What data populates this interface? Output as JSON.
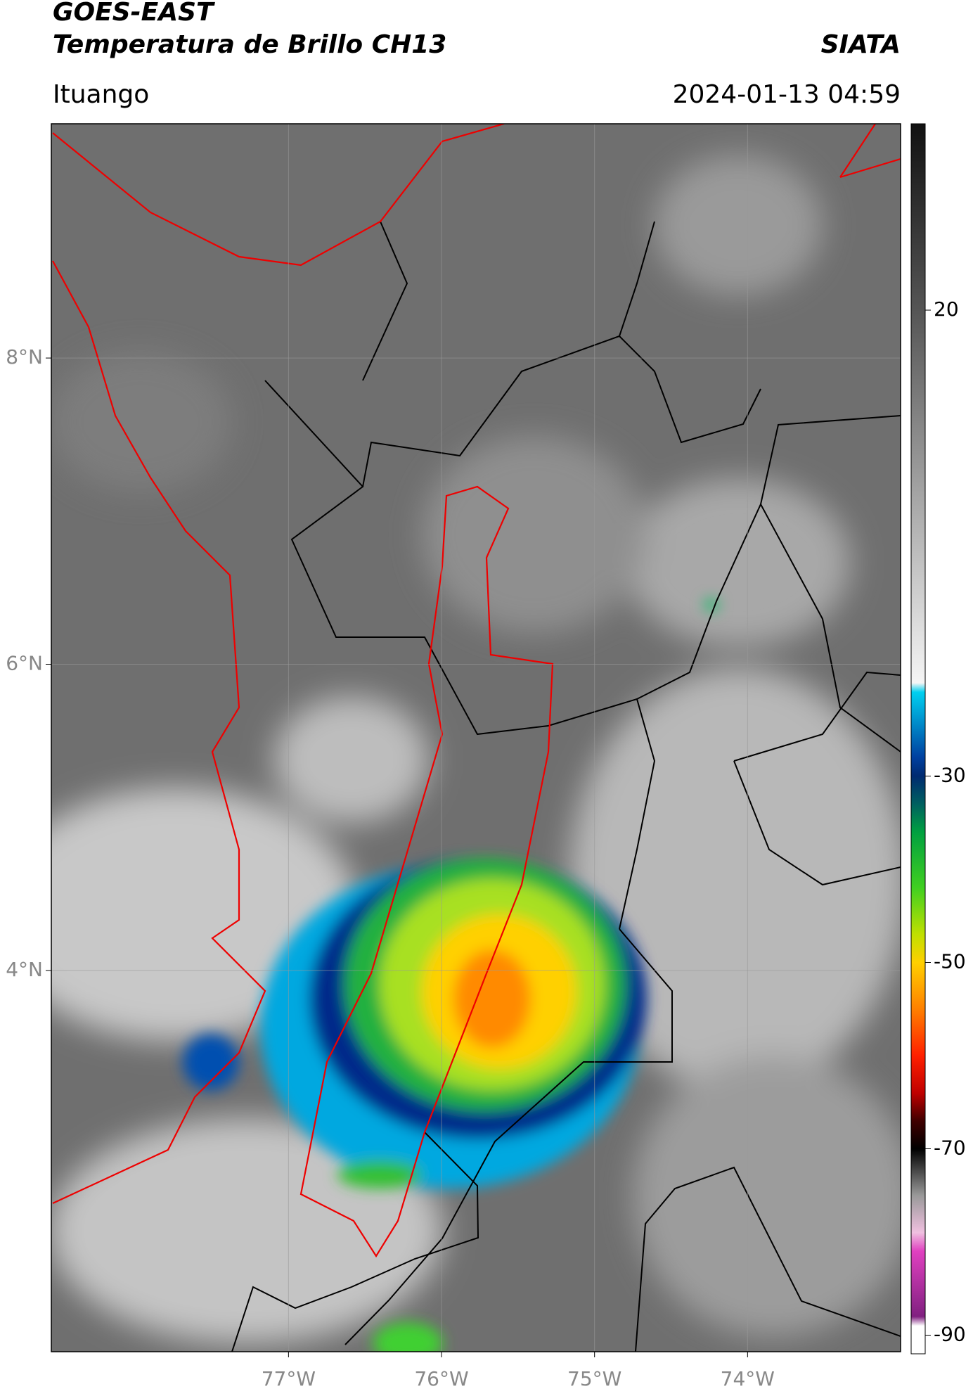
{
  "header": {
    "title_line1": "GOES-EAST",
    "title_line2": "Temperatura de Brillo CH13",
    "credit": "SIATA",
    "location": "Ituango",
    "datetime": "2024-01-13 04:59"
  },
  "map": {
    "xlim": [
      -78.55,
      -73.0
    ],
    "ylim": [
      1.51,
      9.53
    ],
    "grid": true,
    "xticks": [
      {
        "value": -77,
        "label": "77°W"
      },
      {
        "value": -76,
        "label": "76°W"
      },
      {
        "value": -75,
        "label": "75°W"
      },
      {
        "value": -74,
        "label": "74°W"
      }
    ],
    "yticks": [
      {
        "value": 8,
        "label": "8°N"
      },
      {
        "value": 6,
        "label": "6°N"
      },
      {
        "value": 4,
        "label": "4°N"
      }
    ]
  },
  "colorbar": {
    "lim": [
      -92,
      40
    ],
    "ticks": [
      20,
      -30,
      -50,
      -70,
      -90
    ],
    "stops": [
      [
        40,
        "#111111"
      ],
      [
        20,
        "#555555"
      ],
      [
        -20,
        "#f5f5f5"
      ],
      [
        -21,
        "#00d0f0"
      ],
      [
        -28,
        "#0040a0"
      ],
      [
        -30,
        "#002a70"
      ],
      [
        -33,
        "#006060"
      ],
      [
        -36,
        "#00a040"
      ],
      [
        -42,
        "#40d020"
      ],
      [
        -47,
        "#c0e000"
      ],
      [
        -50,
        "#ffd000"
      ],
      [
        -55,
        "#ff8000"
      ],
      [
        -60,
        "#ff2000"
      ],
      [
        -64,
        "#c00000"
      ],
      [
        -67,
        "#400000"
      ],
      [
        -70,
        "#000000"
      ],
      [
        -75,
        "#999999"
      ],
      [
        -79,
        "#f0c0e0"
      ],
      [
        -81,
        "#e040c0"
      ],
      [
        -88,
        "#802080"
      ],
      [
        -89,
        "#ffffff"
      ],
      [
        -92,
        "#ffffff"
      ]
    ]
  }
}
